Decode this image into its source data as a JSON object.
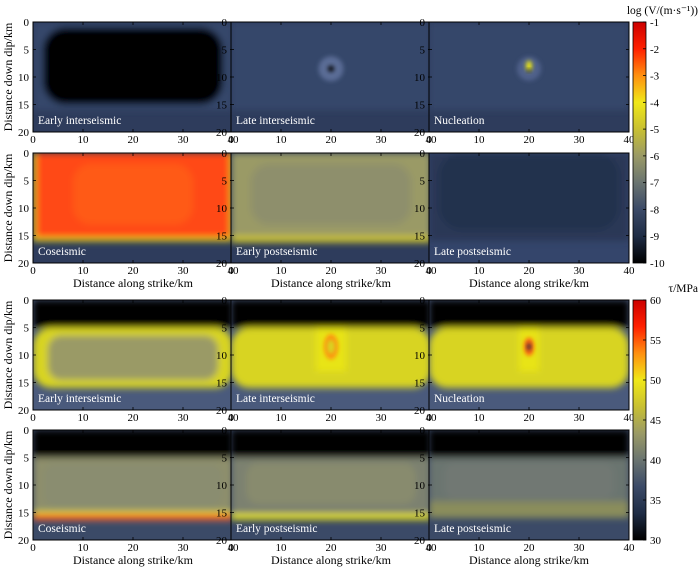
{
  "figure": {
    "xlabel": "Distance along strike/km",
    "ylabel": "Distance down dip/km"
  },
  "colorbars": [
    {
      "title": "log (V/(m·s⁻¹))",
      "min": -10,
      "max": -1,
      "ticks": [
        "-1",
        "-2",
        "-3",
        "-4",
        "-5",
        "-6",
        "-7",
        "-8",
        "-9",
        "-10"
      ],
      "tick_values": [
        -1,
        -2,
        -3,
        -4,
        -5,
        -6,
        -7,
        -8,
        -9,
        -10
      ],
      "stops": [
        "#000000",
        "#1e2c45",
        "#3b4a67",
        "#6a7470",
        "#9a9a66",
        "#c8c032",
        "#f0e818",
        "#ff9010",
        "#ff2000",
        "#cc0000"
      ]
    },
    {
      "title": "τ/MPa",
      "min": 30,
      "max": 60,
      "ticks": [
        "60",
        "55",
        "50",
        "45",
        "40",
        "35",
        "30"
      ],
      "tick_values": [
        60,
        55,
        50,
        45,
        40,
        35,
        30
      ],
      "stops": [
        "#000000",
        "#1e2c45",
        "#3b4a67",
        "#6a7470",
        "#9a9a66",
        "#c8c032",
        "#f0e818",
        "#ff9010",
        "#ff2000",
        "#cc0000"
      ]
    }
  ],
  "chart_data": [
    {
      "type": "heatmap",
      "group": "velocity",
      "label": "Early interseismic",
      "xlim": [
        0,
        40
      ],
      "ylim": [
        0,
        20
      ],
      "xticks": [
        "0",
        "10",
        "20",
        "30",
        "40"
      ],
      "yticks": [
        "0",
        "5",
        "10",
        "15",
        "20"
      ],
      "background": "#2e3c5c",
      "base": "#000000",
      "regions": [
        {
          "x": [
            0,
            40
          ],
          "y": [
            0,
            16
          ],
          "color": "#35466a"
        },
        {
          "x": [
            2,
            38
          ],
          "y": [
            1,
            15
          ],
          "color": "#000000",
          "rounded": true
        }
      ]
    },
    {
      "type": "heatmap",
      "group": "velocity",
      "label": "Late interseismic",
      "xlim": [
        0,
        40
      ],
      "ylim": [
        0,
        20
      ],
      "xticks": [
        "0",
        "10",
        "20",
        "30",
        "40"
      ],
      "yticks": [
        "0",
        "5",
        "10",
        "15",
        "20"
      ],
      "background": "#2e3c5c",
      "regions": [
        {
          "x": [
            0,
            40
          ],
          "y": [
            0,
            16
          ],
          "color": "#35466a"
        }
      ],
      "spots": [
        {
          "x": 20,
          "y": 8.5,
          "r": 2.5,
          "color": "#5a6c95"
        },
        {
          "x": 20,
          "y": 8.5,
          "r": 0.6,
          "color": "#000000"
        }
      ]
    },
    {
      "type": "heatmap",
      "group": "velocity",
      "label": "Nucleation",
      "xlim": [
        0,
        40
      ],
      "ylim": [
        0,
        20
      ],
      "xticks": [
        "0",
        "10",
        "20",
        "30",
        "40"
      ],
      "yticks": [
        "0",
        "5",
        "10",
        "15",
        "20"
      ],
      "background": "#2e3c5c",
      "regions": [
        {
          "x": [
            0,
            40
          ],
          "y": [
            0,
            16
          ],
          "color": "#35466a"
        }
      ],
      "spots": [
        {
          "x": 20,
          "y": 8.5,
          "r": 2.4,
          "color": "#4f608a"
        },
        {
          "x": 20,
          "y": 8.0,
          "r": 0.6,
          "color": "#f2ec10",
          "tall": true
        },
        {
          "x": 20,
          "y": 8.8,
          "r": 0.3,
          "color": "#000000"
        }
      ]
    },
    {
      "type": "heatmap",
      "group": "velocity",
      "label": "Coseismic",
      "xlim": [
        0,
        40
      ],
      "ylim": [
        0,
        20
      ],
      "xticks": [
        "0",
        "10",
        "20",
        "30",
        "40"
      ],
      "yticks": [
        "0",
        "5",
        "10",
        "15",
        "20"
      ],
      "background": "#2e3c5c",
      "regions": [
        {
          "x": [
            0,
            40
          ],
          "y": [
            0,
            16
          ],
          "color": "#ff4a14"
        },
        {
          "x": [
            0,
            40
          ],
          "y": [
            15.4,
            16
          ],
          "color": "#f0e818"
        },
        {
          "x": [
            0,
            0.5
          ],
          "y": [
            0,
            16
          ],
          "color": "#f0e818"
        },
        {
          "x": [
            39.5,
            40
          ],
          "y": [
            0,
            16
          ],
          "color": "#f0e818"
        },
        {
          "x": [
            8,
            32
          ],
          "y": [
            2,
            13
          ],
          "color": "#ff5a18",
          "rounded": true
        }
      ]
    },
    {
      "type": "heatmap",
      "group": "velocity",
      "label": "Early postseismic",
      "xlim": [
        0,
        40
      ],
      "ylim": [
        0,
        20
      ],
      "xticks": [
        "0",
        "10",
        "20",
        "30",
        "40"
      ],
      "yticks": [
        "0",
        "5",
        "10",
        "15",
        "20"
      ],
      "background": "#2e3c5c",
      "regions": [
        {
          "x": [
            0,
            40
          ],
          "y": [
            0,
            16
          ],
          "color": "#9a9a66"
        },
        {
          "x": [
            0,
            40
          ],
          "y": [
            15,
            16.3
          ],
          "color": "#c8c032"
        },
        {
          "x": [
            4,
            36
          ],
          "y": [
            2,
            13
          ],
          "color": "#8e8f6c",
          "rounded": true
        }
      ]
    },
    {
      "type": "heatmap",
      "group": "velocity",
      "label": "Late postseismic",
      "xlim": [
        0,
        40
      ],
      "ylim": [
        0,
        20
      ],
      "xticks": [
        "0",
        "10",
        "20",
        "30",
        "40"
      ],
      "yticks": [
        "0",
        "5",
        "10",
        "15",
        "20"
      ],
      "background": "#34456b",
      "regions": [
        {
          "x": [
            0,
            40
          ],
          "y": [
            0,
            16
          ],
          "color": "#2a3856"
        },
        {
          "x": [
            2,
            38
          ],
          "y": [
            0,
            14
          ],
          "color": "#24314d",
          "rounded": true
        }
      ]
    },
    {
      "type": "heatmap",
      "group": "stress",
      "label": "Early interseismic",
      "xlim": [
        0,
        40
      ],
      "ylim": [
        0,
        20
      ],
      "xticks": [
        "0",
        "10",
        "20",
        "30",
        "40"
      ],
      "yticks": [
        "0",
        "5",
        "10",
        "15",
        "20"
      ],
      "background": "#4a5a7c",
      "regions": [
        {
          "x": [
            0,
            40
          ],
          "y": [
            0,
            5
          ],
          "color": "#000000"
        },
        {
          "x": [
            0,
            40
          ],
          "y": [
            5,
            16
          ],
          "color": "#d8d422",
          "rounded": true
        },
        {
          "x": [
            3,
            37
          ],
          "y": [
            6.5,
            14.5
          ],
          "color": "#9a9a66",
          "rounded": true
        }
      ]
    },
    {
      "type": "heatmap",
      "group": "stress",
      "label": "Late interseismic",
      "xlim": [
        0,
        40
      ],
      "ylim": [
        0,
        20
      ],
      "xticks": [
        "0",
        "10",
        "20",
        "30",
        "40"
      ],
      "yticks": [
        "0",
        "5",
        "10",
        "15",
        "20"
      ],
      "background": "#4a5a7c",
      "regions": [
        {
          "x": [
            0,
            40
          ],
          "y": [
            0,
            5
          ],
          "color": "#000000"
        },
        {
          "x": [
            0,
            40
          ],
          "y": [
            5,
            16
          ],
          "color": "#d8d422",
          "rounded": true
        },
        {
          "x": [
            17,
            23
          ],
          "y": [
            5,
            13
          ],
          "color": "#e8e418"
        }
      ],
      "spots": [
        {
          "x": 20,
          "y": 8.5,
          "r": 1.4,
          "color": "#ff9010",
          "tall": true
        },
        {
          "x": 20,
          "y": 8.5,
          "r": 0.8,
          "color": "#d8d422",
          "tall": true
        }
      ]
    },
    {
      "type": "heatmap",
      "group": "stress",
      "label": "Nucleation",
      "xlim": [
        0,
        40
      ],
      "ylim": [
        0,
        20
      ],
      "xticks": [
        "0",
        "10",
        "20",
        "30",
        "40"
      ],
      "yticks": [
        "0",
        "5",
        "10",
        "15",
        "20"
      ],
      "background": "#4a5a7c",
      "regions": [
        {
          "x": [
            0,
            40
          ],
          "y": [
            0,
            5
          ],
          "color": "#000000"
        },
        {
          "x": [
            0,
            40
          ],
          "y": [
            5,
            16
          ],
          "color": "#d8d422",
          "rounded": true
        },
        {
          "x": [
            18,
            22
          ],
          "y": [
            5,
            13
          ],
          "color": "#e8e418"
        }
      ],
      "spots": [
        {
          "x": 20,
          "y": 8.5,
          "r": 1.0,
          "color": "#ff6010",
          "tall": true
        },
        {
          "x": 20,
          "y": 8.5,
          "r": 0.4,
          "color": "#1e2c45",
          "tall": true
        }
      ]
    },
    {
      "type": "heatmap",
      "group": "stress",
      "label": "Coseismic",
      "xlim": [
        0,
        40
      ],
      "ylim": [
        0,
        20
      ],
      "xticks": [
        "0",
        "10",
        "20",
        "30",
        "40"
      ],
      "yticks": [
        "0",
        "5",
        "10",
        "15",
        "20"
      ],
      "background": "#3b4a67",
      "regions": [
        {
          "x": [
            0,
            40
          ],
          "y": [
            0,
            5
          ],
          "color": "#000000"
        },
        {
          "x": [
            0,
            40
          ],
          "y": [
            5,
            16.5
          ],
          "color": "#8e8f6c"
        },
        {
          "x": [
            0,
            40
          ],
          "y": [
            15.4,
            16.3
          ],
          "color": "#ff2a00"
        },
        {
          "x": [
            0,
            40
          ],
          "y": [
            14.8,
            15.4
          ],
          "color": "#e8e418"
        },
        {
          "x": [
            2,
            38
          ],
          "y": [
            6,
            14
          ],
          "color": "#8a8d70",
          "rounded": true
        }
      ]
    },
    {
      "type": "heatmap",
      "group": "stress",
      "label": "Early postseismic",
      "xlim": [
        0,
        40
      ],
      "ylim": [
        0,
        20
      ],
      "xticks": [
        "0",
        "10",
        "20",
        "30",
        "40"
      ],
      "yticks": [
        "0",
        "5",
        "10",
        "15",
        "20"
      ],
      "background": "#3b4a67",
      "regions": [
        {
          "x": [
            0,
            40
          ],
          "y": [
            0,
            5
          ],
          "color": "#000000"
        },
        {
          "x": [
            0,
            40
          ],
          "y": [
            5,
            16
          ],
          "color": "#7c8170"
        },
        {
          "x": [
            0,
            40
          ],
          "y": [
            15.2,
            16.3
          ],
          "color": "#e8e418"
        },
        {
          "x": [
            3,
            37
          ],
          "y": [
            6,
            13.5
          ],
          "color": "#888b6e",
          "rounded": true
        }
      ]
    },
    {
      "type": "heatmap",
      "group": "stress",
      "label": "Late postseismic",
      "xlim": [
        0,
        40
      ],
      "ylim": [
        0,
        20
      ],
      "xticks": [
        "0",
        "10",
        "20",
        "30",
        "40"
      ],
      "yticks": [
        "0",
        "5",
        "10",
        "15",
        "20"
      ],
      "background": "#3b4a67",
      "regions": [
        {
          "x": [
            0,
            40
          ],
          "y": [
            0,
            5
          ],
          "color": "#000000"
        },
        {
          "x": [
            0,
            40
          ],
          "y": [
            5,
            16
          ],
          "color": "#6a7470"
        },
        {
          "x": [
            0,
            40
          ],
          "y": [
            13,
            16
          ],
          "color": "#8a8d5c"
        },
        {
          "x": [
            3,
            37
          ],
          "y": [
            6,
            12.5
          ],
          "color": "#717873",
          "rounded": true
        }
      ]
    }
  ]
}
